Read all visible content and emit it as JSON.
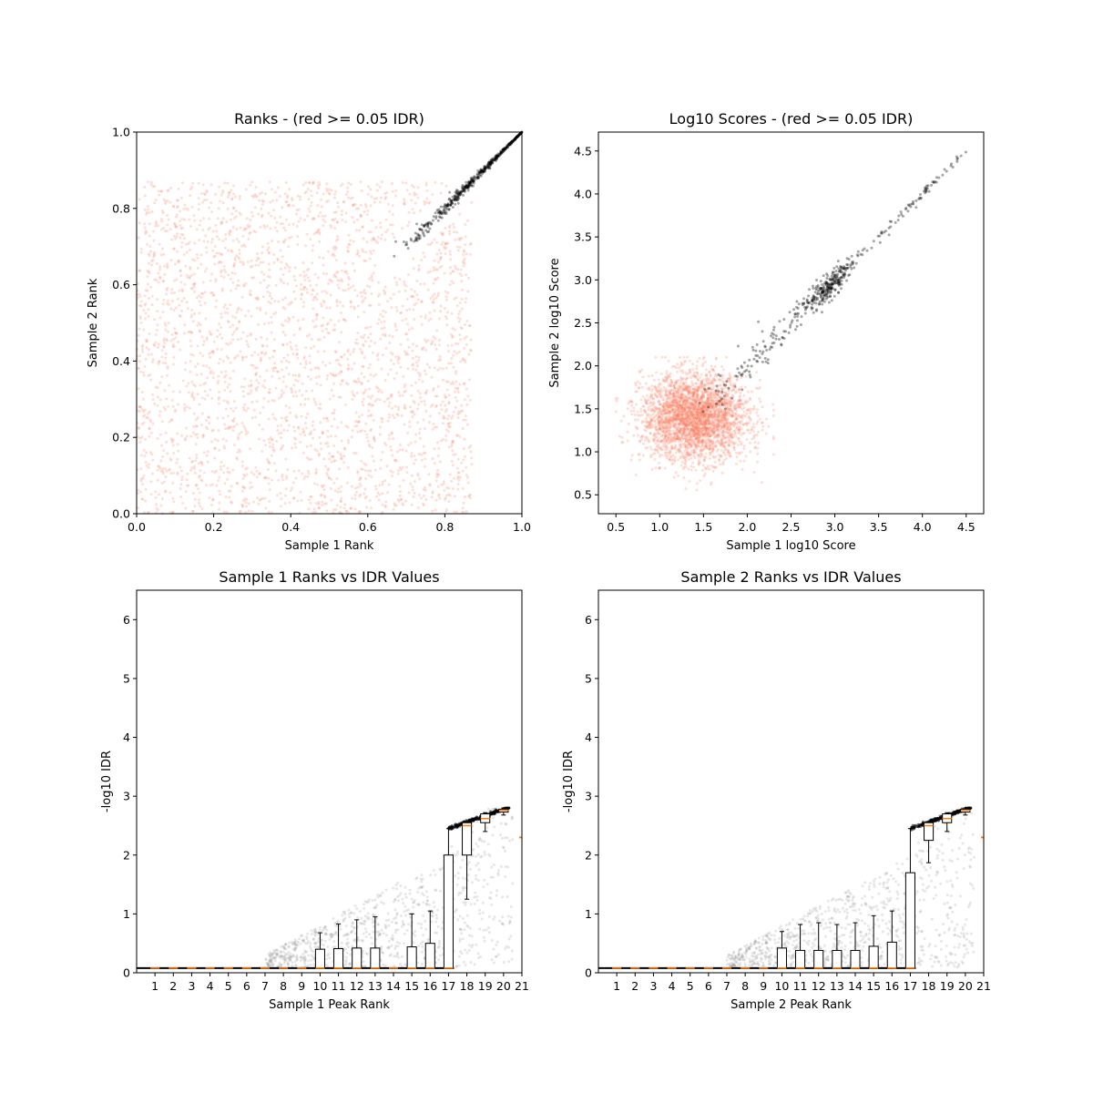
{
  "chart_data": [
    {
      "type": "scatter",
      "title": "Ranks - (red >= 0.05 IDR)",
      "xlabel": "Sample 1 Rank",
      "ylabel": "Sample 2 Rank",
      "xlim": [
        0,
        1
      ],
      "ylim": [
        0,
        1
      ],
      "xticks": [
        "0.0",
        "0.2",
        "0.4",
        "0.6",
        "0.8",
        "1.0"
      ],
      "yticks": [
        "0.0",
        "0.2",
        "0.4",
        "0.6",
        "0.8",
        "1.0"
      ],
      "grid": false,
      "series": [
        {
          "color": "#fa8064",
          "description_values": "uniform cloud, x in [0,0.87], y in [0,0.87]",
          "count": 3000
        },
        {
          "color": "#000000",
          "x": [
            0.68,
            0.7,
            0.72,
            0.74,
            0.76,
            0.78,
            0.8,
            0.82,
            0.84,
            0.86,
            0.88,
            0.9,
            0.92,
            0.94,
            0.96,
            0.98,
            1.0
          ],
          "y": [
            0.7,
            0.72,
            0.74,
            0.76,
            0.78,
            0.8,
            0.82,
            0.84,
            0.85,
            0.86,
            0.88,
            0.9,
            0.92,
            0.94,
            0.96,
            0.98,
            1.0
          ]
        }
      ]
    },
    {
      "type": "scatter",
      "title": "Log10 Scores - (red >= 0.05 IDR)",
      "xlabel": "Sample 1 log10 Score",
      "ylabel": "Sample 2 log10 Score",
      "xlim": [
        0.3,
        4.7
      ],
      "ylim": [
        0.28,
        4.72
      ],
      "xticks": [
        "0.5",
        "1.0",
        "1.5",
        "2.0",
        "2.5",
        "3.0",
        "3.5",
        "4.0",
        "4.5"
      ],
      "yticks": [
        "0.5",
        "1.0",
        "1.5",
        "2.0",
        "2.5",
        "3.0",
        "3.5",
        "4.0",
        "4.5"
      ],
      "grid": false,
      "series": [
        {
          "color": "#fa8064",
          "center": [
            1.4,
            1.4
          ],
          "spread": [
            0.3,
            0.25
          ],
          "count": 3000
        },
        {
          "color": "#000000",
          "x": [
            1.6,
            1.8,
            2.0,
            2.2,
            2.5,
            2.8,
            3.0,
            3.2,
            3.5,
            3.8,
            4.0,
            4.5
          ],
          "y": [
            1.65,
            1.85,
            2.0,
            2.2,
            2.5,
            2.8,
            3.0,
            3.2,
            3.5,
            3.8,
            4.0,
            4.5
          ]
        }
      ]
    },
    {
      "type": "box",
      "title": "Sample 1 Ranks vs IDR Values",
      "xlabel": "Sample 1 Peak Rank",
      "ylabel": "-log10 IDR",
      "xlim": [
        0,
        21
      ],
      "ylim": [
        0,
        6.5
      ],
      "xticks": [
        "1",
        "2",
        "3",
        "4",
        "5",
        "6",
        "7",
        "8",
        "9",
        "10",
        "11",
        "12",
        "13",
        "14",
        "15",
        "16",
        "17",
        "18",
        "19",
        "20",
        "21"
      ],
      "yticks": [
        "0",
        "1",
        "2",
        "3",
        "4",
        "5",
        "6"
      ],
      "boxes": [
        {
          "pos": 10,
          "whislo": 0.08,
          "q1": 0.08,
          "med": 0.08,
          "q3": 0.4,
          "whishi": 0.68
        },
        {
          "pos": 11,
          "whislo": 0.08,
          "q1": 0.08,
          "med": 0.08,
          "q3": 0.41,
          "whishi": 0.83
        },
        {
          "pos": 12,
          "whislo": 0.08,
          "q1": 0.08,
          "med": 0.08,
          "q3": 0.42,
          "whishi": 0.9
        },
        {
          "pos": 13,
          "whislo": 0.08,
          "q1": 0.08,
          "med": 0.08,
          "q3": 0.42,
          "whishi": 0.95
        },
        {
          "pos": 15,
          "whislo": 0.08,
          "q1": 0.08,
          "med": 0.08,
          "q3": 0.44,
          "whishi": 1.0
        },
        {
          "pos": 16,
          "whislo": 0.08,
          "q1": 0.08,
          "med": 0.08,
          "q3": 0.5,
          "whishi": 1.05
        },
        {
          "pos": 17,
          "whislo": 0.08,
          "q1": 0.08,
          "med": 0.08,
          "q3": 2.0,
          "whishi": 2.45
        },
        {
          "pos": 18,
          "whislo": 1.25,
          "q1": 2.0,
          "med": 2.5,
          "q3": 2.55,
          "whishi": 2.55
        },
        {
          "pos": 19,
          "whislo": 2.4,
          "q1": 2.55,
          "med": 2.62,
          "q3": 2.7,
          "whishi": 2.72
        },
        {
          "pos": 20,
          "whislo": 2.68,
          "q1": 2.73,
          "med": 2.76,
          "q3": 2.78,
          "whishi": 2.8
        }
      ],
      "flat_positions": [
        1,
        2,
        3,
        4,
        5,
        6,
        7,
        8,
        9,
        14
      ],
      "flat_value": 0.08,
      "outlier_at_21": 2.3
    },
    {
      "type": "box",
      "title": "Sample 2 Ranks vs IDR Values",
      "xlabel": "Sample 2 Peak Rank",
      "ylabel": "-log10 IDR",
      "xlim": [
        0,
        21
      ],
      "ylim": [
        0,
        6.5
      ],
      "xticks": [
        "1",
        "2",
        "3",
        "4",
        "5",
        "6",
        "7",
        "8",
        "9",
        "10",
        "11",
        "12",
        "13",
        "14",
        "15",
        "16",
        "17",
        "18",
        "19",
        "20",
        "21"
      ],
      "yticks": [
        "0",
        "1",
        "2",
        "3",
        "4",
        "5",
        "6"
      ],
      "boxes": [
        {
          "pos": 10,
          "whislo": 0.08,
          "q1": 0.08,
          "med": 0.08,
          "q3": 0.42,
          "whishi": 0.7
        },
        {
          "pos": 11,
          "whislo": 0.08,
          "q1": 0.08,
          "med": 0.08,
          "q3": 0.38,
          "whishi": 0.82
        },
        {
          "pos": 12,
          "whislo": 0.08,
          "q1": 0.08,
          "med": 0.08,
          "q3": 0.38,
          "whishi": 0.85
        },
        {
          "pos": 13,
          "whislo": 0.08,
          "q1": 0.08,
          "med": 0.08,
          "q3": 0.38,
          "whishi": 0.82
        },
        {
          "pos": 14,
          "whislo": 0.08,
          "q1": 0.08,
          "med": 0.08,
          "q3": 0.38,
          "whishi": 0.85
        },
        {
          "pos": 15,
          "whislo": 0.08,
          "q1": 0.08,
          "med": 0.08,
          "q3": 0.45,
          "whishi": 0.97
        },
        {
          "pos": 16,
          "whislo": 0.08,
          "q1": 0.08,
          "med": 0.08,
          "q3": 0.52,
          "whishi": 1.05
        },
        {
          "pos": 17,
          "whislo": 0.08,
          "q1": 0.08,
          "med": 0.08,
          "q3": 1.7,
          "whishi": 2.45
        },
        {
          "pos": 18,
          "whislo": 1.87,
          "q1": 2.25,
          "med": 2.5,
          "q3": 2.55,
          "whishi": 2.55
        },
        {
          "pos": 19,
          "whislo": 2.4,
          "q1": 2.55,
          "med": 2.62,
          "q3": 2.7,
          "whishi": 2.72
        },
        {
          "pos": 20,
          "whislo": 2.68,
          "q1": 2.73,
          "med": 2.76,
          "q3": 2.78,
          "whishi": 2.8
        }
      ],
      "flat_positions": [
        1,
        2,
        3,
        4,
        5,
        6,
        7,
        8,
        9
      ],
      "flat_value": 0.08,
      "outlier_at_21": 2.3
    }
  ]
}
